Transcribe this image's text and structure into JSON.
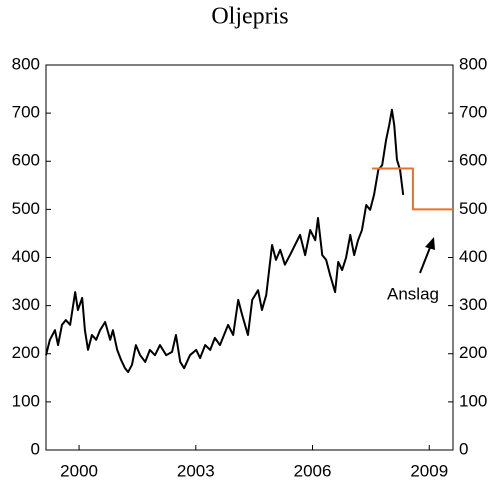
{
  "chart_data": {
    "type": "line",
    "title": "Oljepris",
    "annotation": "Anslag",
    "xlim": [
      1999.15,
      2009.61
    ],
    "xticks": [
      2000,
      2003,
      2006,
      2009
    ],
    "ylim": [
      0,
      800
    ],
    "yticks": [
      0,
      100,
      200,
      300,
      400,
      500,
      600,
      700,
      800
    ],
    "y2lim": [
      0,
      800
    ],
    "y2ticks": [
      0,
      100,
      200,
      300,
      400,
      500,
      600,
      700,
      800
    ],
    "series": [
      {
        "color": "#000000",
        "x": [
          1999.15,
          1999.25,
          1999.38,
          1999.46,
          1999.56,
          1999.66,
          1999.77,
          1999.9,
          1999.97,
          2000.08,
          2000.15,
          2000.23,
          2000.33,
          2000.44,
          2000.54,
          2000.67,
          2000.8,
          2000.87,
          2000.98,
          2001.08,
          2001.18,
          2001.26,
          2001.36,
          2001.46,
          2001.57,
          2001.7,
          2001.82,
          2001.95,
          2002.08,
          2002.24,
          2002.39,
          2002.49,
          2002.6,
          2002.7,
          2002.85,
          2003.01,
          2003.11,
          2003.24,
          2003.37,
          2003.49,
          2003.62,
          2003.83,
          2003.96,
          2004.09,
          2004.19,
          2004.34,
          2004.45,
          2004.6,
          2004.7,
          2004.81,
          2004.96,
          2005.06,
          2005.17,
          2005.29,
          2005.42,
          2005.55,
          2005.68,
          2005.81,
          2005.94,
          2006.07,
          2006.14,
          2006.25,
          2006.35,
          2006.45,
          2006.58,
          2006.66,
          2006.76,
          2006.86,
          2006.97,
          2007.07,
          2007.17,
          2007.27,
          2007.38,
          2007.48,
          2007.58,
          2007.69,
          2007.79,
          2007.89,
          2007.97,
          2008.04,
          2008.1,
          2008.17,
          2008.25,
          2008.33
        ],
        "values": [
          197,
          229,
          249,
          218,
          260,
          270,
          260,
          328,
          291,
          316,
          249,
          208,
          239,
          229,
          249,
          266,
          229,
          249,
          208,
          187,
          170,
          162,
          177,
          218,
          197,
          183,
          208,
          197,
          218,
          197,
          204,
          239,
          183,
          170,
          197,
          208,
          191,
          218,
          208,
          233,
          218,
          260,
          239,
          312,
          281,
          239,
          312,
          332,
          291,
          322,
          426,
          395,
          416,
          385,
          405,
          426,
          447,
          405,
          457,
          436,
          482,
          405,
          395,
          364,
          328,
          391,
          374,
          399,
          447,
          405,
          436,
          457,
          509,
          499,
          530,
          582,
          592,
          644,
          675,
          707,
          675,
          603,
          582,
          530
        ]
      },
      {
        "color": "#e8722c",
        "axis": "y2",
        "x": [
          2007.53,
          2008.58,
          2008.58,
          2009.61
        ],
        "values": [
          585,
          585,
          500,
          500
        ]
      }
    ]
  }
}
